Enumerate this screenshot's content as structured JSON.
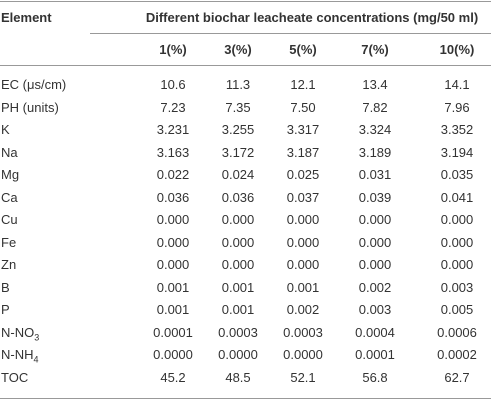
{
  "table": {
    "header": {
      "label": "Element",
      "group": "Different biochar leacheate concentrations (mg/50 ml)"
    },
    "columns": [
      "1(%)",
      "3(%)",
      "5(%)",
      "7(%)",
      "10(%)"
    ],
    "rows": [
      {
        "label": "EC (μs/cm)",
        "cells": [
          "10.6",
          "11.3",
          "12.1",
          "13.4",
          "14.1"
        ]
      },
      {
        "label": "PH (units)",
        "cells": [
          "7.23",
          "7.35",
          "7.50",
          "7.82",
          "7.96"
        ]
      },
      {
        "label": "K",
        "cells": [
          "3.231",
          "3.255",
          "3.317",
          "3.324",
          "3.352"
        ]
      },
      {
        "label": "Na",
        "cells": [
          "3.163",
          "3.172",
          "3.187",
          "3.189",
          "3.194"
        ]
      },
      {
        "label": "Mg",
        "cells": [
          "0.022",
          "0.024",
          "0.025",
          "0.031",
          "0.035"
        ]
      },
      {
        "label": "Ca",
        "cells": [
          "0.036",
          "0.036",
          "0.037",
          "0.039",
          "0.041"
        ]
      },
      {
        "label": "Cu",
        "cells": [
          "0.000",
          "0.000",
          "0.000",
          "0.000",
          "0.000"
        ]
      },
      {
        "label": "Fe",
        "cells": [
          "0.000",
          "0.000",
          "0.000",
          "0.000",
          "0.000"
        ]
      },
      {
        "label": "Zn",
        "cells": [
          "0.000",
          "0.000",
          "0.000",
          "0.000",
          "0.000"
        ]
      },
      {
        "label": "B",
        "cells": [
          "0.001",
          "0.001",
          "0.001",
          "0.002",
          "0.003"
        ]
      },
      {
        "label": "P",
        "cells": [
          "0.001",
          "0.001",
          "0.002",
          "0.003",
          "0.005"
        ]
      },
      {
        "label": "N-NO",
        "label_sub": "3",
        "cells": [
          "0.0001",
          "0.0003",
          "0.0003",
          "0.0004",
          "0.0006"
        ]
      },
      {
        "label": "N-NH",
        "label_sub": "4",
        "cells": [
          "0.0000",
          "0.0000",
          "0.0000",
          "0.0001",
          "0.0002"
        ]
      },
      {
        "label": "TOC",
        "cells": [
          "45.2",
          "48.5",
          "52.1",
          "56.8",
          "62.7"
        ]
      }
    ]
  }
}
